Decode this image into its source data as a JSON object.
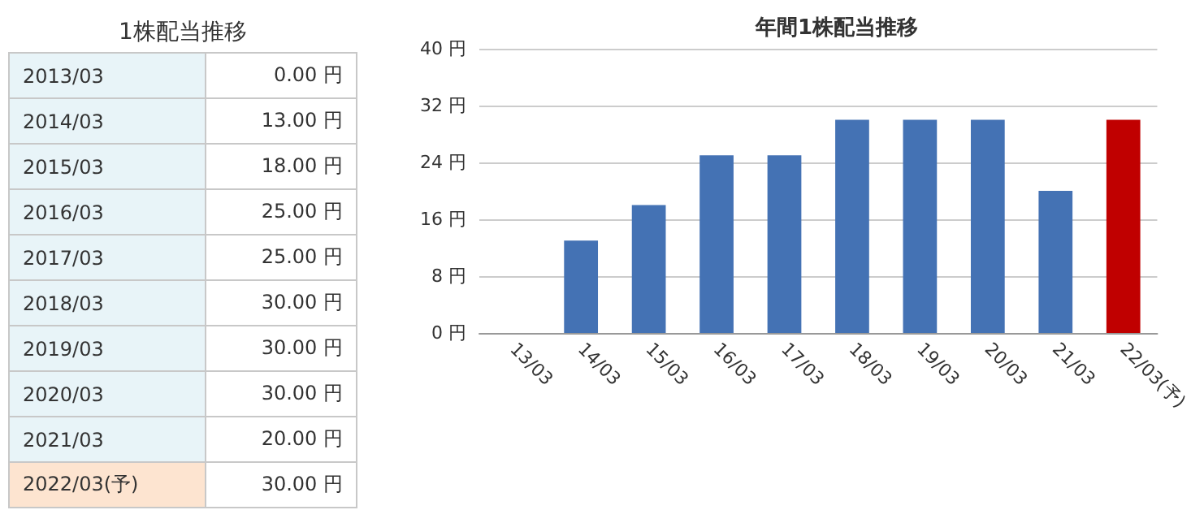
{
  "chart_data": [
    {
      "type": "other",
      "title": "1株配当推移",
      "categories": [
        "2013/03",
        "2014/03",
        "2015/03",
        "2016/03",
        "2017/03",
        "2018/03",
        "2019/03",
        "2020/03",
        "2021/03",
        "2022/03(予)"
      ],
      "values": [
        0,
        13,
        18,
        25,
        25,
        30,
        30,
        30,
        20,
        30
      ],
      "value_labels": [
        "0.00 円",
        "13.00 円",
        "18.00 円",
        "25.00 円",
        "25.00 円",
        "30.00 円",
        "30.00 円",
        "30.00 円",
        "20.00 円",
        "30.00 円"
      ]
    },
    {
      "type": "bar",
      "title": "年間1株配当推移",
      "categories": [
        "13/03",
        "14/03",
        "15/03",
        "16/03",
        "17/03",
        "18/03",
        "19/03",
        "20/03",
        "21/03",
        "22/03(予)"
      ],
      "values": [
        0,
        13,
        18,
        25,
        25,
        30,
        30,
        30,
        20,
        30
      ],
      "colors": [
        "#4472b4",
        "#4472b4",
        "#4472b4",
        "#4472b4",
        "#4472b4",
        "#4472b4",
        "#4472b4",
        "#4472b4",
        "#4472b4",
        "#c00000"
      ],
      "ylim": [
        0,
        40
      ],
      "yticks": [
        {
          "value": 0,
          "label": "0 円"
        },
        {
          "value": 8,
          "label": "8 円"
        },
        {
          "value": 16,
          "label": "16 円"
        },
        {
          "value": 24,
          "label": "24 円"
        },
        {
          "value": 32,
          "label": "32 円"
        },
        {
          "value": 40,
          "label": "40 円"
        }
      ],
      "grid": "y"
    }
  ]
}
